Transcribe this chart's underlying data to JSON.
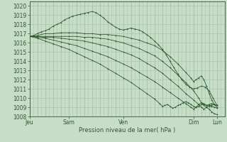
{
  "title": "",
  "xlabel": "Pression niveau de la mer( hPa )",
  "bg_color": "#c8ddc8",
  "grid_color_major": "#a8c8a8",
  "grid_color_minor": "#bcd8bc",
  "line_color": "#2d5a2d",
  "ylim": [
    1008,
    1020.5
  ],
  "xlim": [
    0,
    150
  ],
  "yticks": [
    1008,
    1009,
    1010,
    1011,
    1012,
    1013,
    1014,
    1015,
    1016,
    1017,
    1018,
    1019,
    1020
  ],
  "xtick_positions": [
    0,
    30,
    72,
    126,
    144
  ],
  "xtick_labels": [
    "Jeu",
    "Sam",
    "Ven",
    "Dim",
    "Lun"
  ],
  "series": [
    [
      0,
      1016.7,
      3,
      1016.8,
      6,
      1017.0,
      9,
      1017.2,
      12,
      1017.3,
      15,
      1017.5,
      18,
      1017.8,
      21,
      1018.0,
      24,
      1018.2,
      27,
      1018.5,
      30,
      1018.7,
      33,
      1018.9,
      36,
      1019.0,
      39,
      1019.1,
      42,
      1019.2,
      45,
      1019.3,
      48,
      1019.4,
      51,
      1019.3,
      54,
      1019.0,
      57,
      1018.7,
      60,
      1018.3,
      63,
      1018.0,
      66,
      1017.7,
      69,
      1017.5,
      72,
      1017.4,
      75,
      1017.5,
      78,
      1017.6,
      81,
      1017.5,
      84,
      1017.4,
      87,
      1017.2,
      90,
      1016.9,
      93,
      1016.6,
      96,
      1016.2,
      99,
      1015.8,
      102,
      1015.3,
      105,
      1014.7,
      108,
      1014.0,
      111,
      1013.3,
      114,
      1012.6,
      117,
      1012.0,
      120,
      1011.5,
      123,
      1011.2,
      126,
      1011.0,
      129,
      1011.1,
      132,
      1011.3,
      135,
      1011.2,
      138,
      1010.8,
      141,
      1010.0,
      144,
      1009.2
    ],
    [
      0,
      1016.7,
      6,
      1016.8,
      12,
      1017.0,
      18,
      1017.0,
      24,
      1017.1,
      30,
      1017.1,
      36,
      1017.1,
      42,
      1017.0,
      48,
      1017.0,
      54,
      1016.9,
      60,
      1016.9,
      66,
      1016.8,
      72,
      1016.7,
      78,
      1016.5,
      84,
      1016.3,
      90,
      1016.0,
      96,
      1015.7,
      102,
      1015.2,
      108,
      1014.5,
      114,
      1013.7,
      120,
      1012.8,
      124,
      1012.2,
      126,
      1011.8,
      128,
      1012.0,
      130,
      1012.2,
      132,
      1012.4,
      134,
      1012.0,
      136,
      1011.3,
      138,
      1010.5,
      140,
      1009.8,
      142,
      1009.3,
      144,
      1009.0
    ],
    [
      0,
      1016.7,
      6,
      1016.7,
      12,
      1016.7,
      18,
      1016.7,
      24,
      1016.7,
      30,
      1016.7,
      36,
      1016.7,
      42,
      1016.6,
      48,
      1016.6,
      54,
      1016.5,
      60,
      1016.4,
      66,
      1016.2,
      72,
      1016.0,
      78,
      1015.7,
      84,
      1015.4,
      90,
      1015.0,
      96,
      1014.6,
      102,
      1014.0,
      108,
      1013.3,
      114,
      1012.5,
      120,
      1011.7,
      126,
      1010.8,
      130,
      1010.0,
      132,
      1009.5,
      134,
      1009.2,
      136,
      1009.0,
      138,
      1008.8,
      140,
      1008.5,
      142,
      1008.3,
      144,
      1008.2
    ],
    [
      0,
      1016.7,
      6,
      1016.7,
      12,
      1016.6,
      18,
      1016.6,
      24,
      1016.5,
      30,
      1016.4,
      36,
      1016.3,
      42,
      1016.2,
      48,
      1016.0,
      54,
      1015.8,
      60,
      1015.6,
      66,
      1015.3,
      72,
      1015.0,
      78,
      1014.7,
      84,
      1014.3,
      90,
      1013.8,
      96,
      1013.3,
      102,
      1012.7,
      108,
      1012.0,
      114,
      1011.3,
      120,
      1010.5,
      126,
      1009.8,
      130,
      1009.3,
      132,
      1009.0,
      134,
      1008.8,
      136,
      1009.0,
      138,
      1009.2,
      140,
      1009.1,
      142,
      1009.0,
      144,
      1008.9
    ],
    [
      0,
      1016.7,
      6,
      1016.6,
      12,
      1016.5,
      18,
      1016.3,
      24,
      1016.1,
      30,
      1015.9,
      36,
      1015.7,
      42,
      1015.4,
      48,
      1015.1,
      54,
      1014.8,
      60,
      1014.5,
      66,
      1014.1,
      72,
      1013.7,
      78,
      1013.3,
      84,
      1012.8,
      90,
      1012.3,
      96,
      1011.8,
      102,
      1011.2,
      108,
      1010.6,
      114,
      1010.0,
      120,
      1009.4,
      124,
      1009.0,
      126,
      1008.8,
      128,
      1009.0,
      130,
      1009.3,
      132,
      1009.5,
      134,
      1009.4,
      136,
      1009.2,
      138,
      1009.3,
      140,
      1009.4,
      142,
      1009.3,
      144,
      1009.2
    ],
    [
      0,
      1016.7,
      6,
      1016.5,
      12,
      1016.2,
      18,
      1015.9,
      24,
      1015.6,
      30,
      1015.3,
      36,
      1014.9,
      42,
      1014.5,
      48,
      1014.1,
      54,
      1013.7,
      60,
      1013.2,
      66,
      1012.7,
      72,
      1012.2,
      78,
      1011.7,
      84,
      1011.1,
      90,
      1010.5,
      96,
      1009.9,
      100,
      1009.4,
      102,
      1009.1,
      104,
      1009.2,
      106,
      1009.3,
      108,
      1009.1,
      110,
      1008.9,
      112,
      1009.0,
      114,
      1009.2,
      116,
      1009.3,
      118,
      1009.5,
      120,
      1009.6,
      122,
      1009.5,
      124,
      1009.3,
      126,
      1009.1,
      128,
      1009.0,
      130,
      1009.1,
      132,
      1009.3,
      134,
      1009.3,
      136,
      1009.2,
      138,
      1009.1,
      140,
      1009.2,
      142,
      1009.3,
      144,
      1009.2
    ]
  ]
}
